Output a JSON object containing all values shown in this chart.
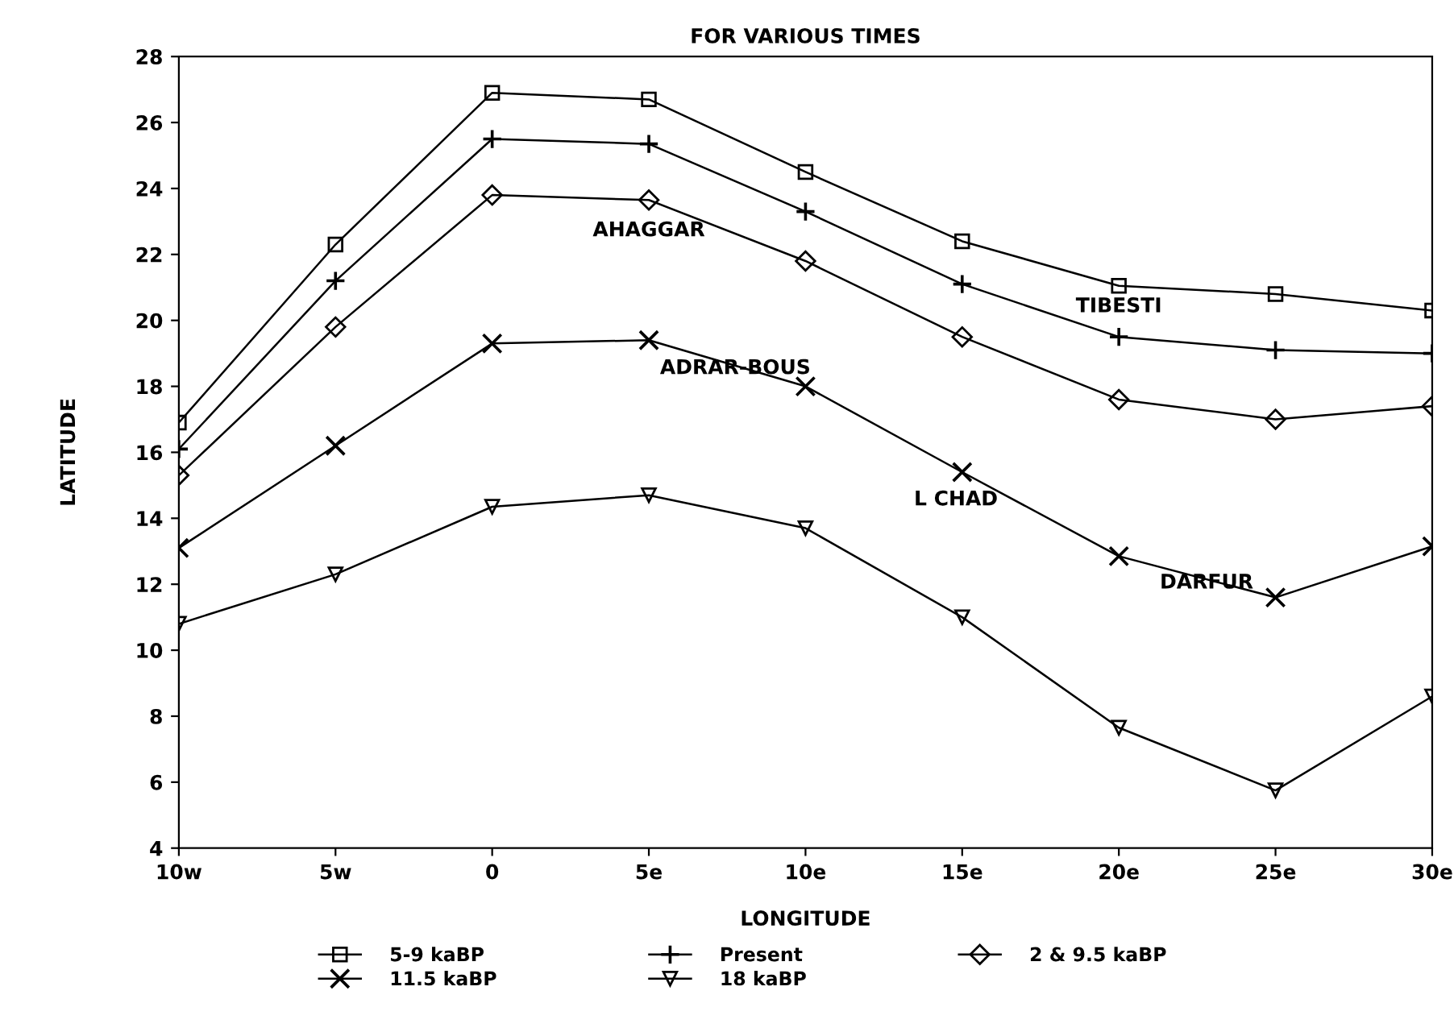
{
  "chart_data": {
    "type": "line",
    "title": "FOR VARIOUS TIMES",
    "xlabel": "LONGITUDE",
    "ylabel": "LATITUDE",
    "x": [
      -10,
      -5,
      0,
      5,
      10,
      15,
      20,
      25,
      30
    ],
    "xlim": [
      -10,
      30
    ],
    "xticks": [
      {
        "value": -10,
        "label": "10w"
      },
      {
        "value": -5,
        "label": "5w"
      },
      {
        "value": 0,
        "label": "0"
      },
      {
        "value": 5,
        "label": "5e"
      },
      {
        "value": 10,
        "label": "10e"
      },
      {
        "value": 15,
        "label": "15e"
      },
      {
        "value": 20,
        "label": "20e"
      },
      {
        "value": 25,
        "label": "25e"
      },
      {
        "value": 30,
        "label": "30e"
      }
    ],
    "ylim": [
      4,
      28
    ],
    "yticks": [
      4,
      6,
      8,
      10,
      12,
      14,
      16,
      18,
      20,
      22,
      24,
      26,
      28
    ],
    "grid": false,
    "legend": "bottom",
    "line_style": "solid",
    "series": [
      {
        "name": "5-9 kaBP",
        "color": "#000000",
        "marker": "square",
        "values": [
          16.9,
          22.3,
          26.9,
          26.7,
          24.5,
          22.4,
          21.05,
          20.8,
          20.3
        ]
      },
      {
        "name": "Present",
        "color": "#000000",
        "marker": "plus",
        "values": [
          16.1,
          21.2,
          25.5,
          25.35,
          23.3,
          21.1,
          19.5,
          19.1,
          19.0
        ]
      },
      {
        "name": "2 & 9.5 kaBP",
        "color": "#000000",
        "marker": "diamond",
        "values": [
          15.3,
          19.8,
          23.8,
          23.65,
          21.8,
          19.5,
          17.6,
          17.0,
          17.4
        ]
      },
      {
        "name": "11.5 kaBP",
        "color": "#000000",
        "marker": "cross",
        "values": [
          13.1,
          16.2,
          19.3,
          19.4,
          18.0,
          15.4,
          12.85,
          11.6,
          13.15
        ]
      },
      {
        "name": "18 kaBP",
        "color": "#000000",
        "marker": "triangle",
        "values": [
          10.8,
          12.3,
          14.35,
          14.7,
          13.7,
          11.0,
          7.65,
          5.75,
          8.6
        ]
      }
    ],
    "annotations": [
      "AHAGGAR",
      "ADRAR-BOUS",
      "TIBESTI",
      "L CHAD",
      "DARFUR"
    ]
  }
}
